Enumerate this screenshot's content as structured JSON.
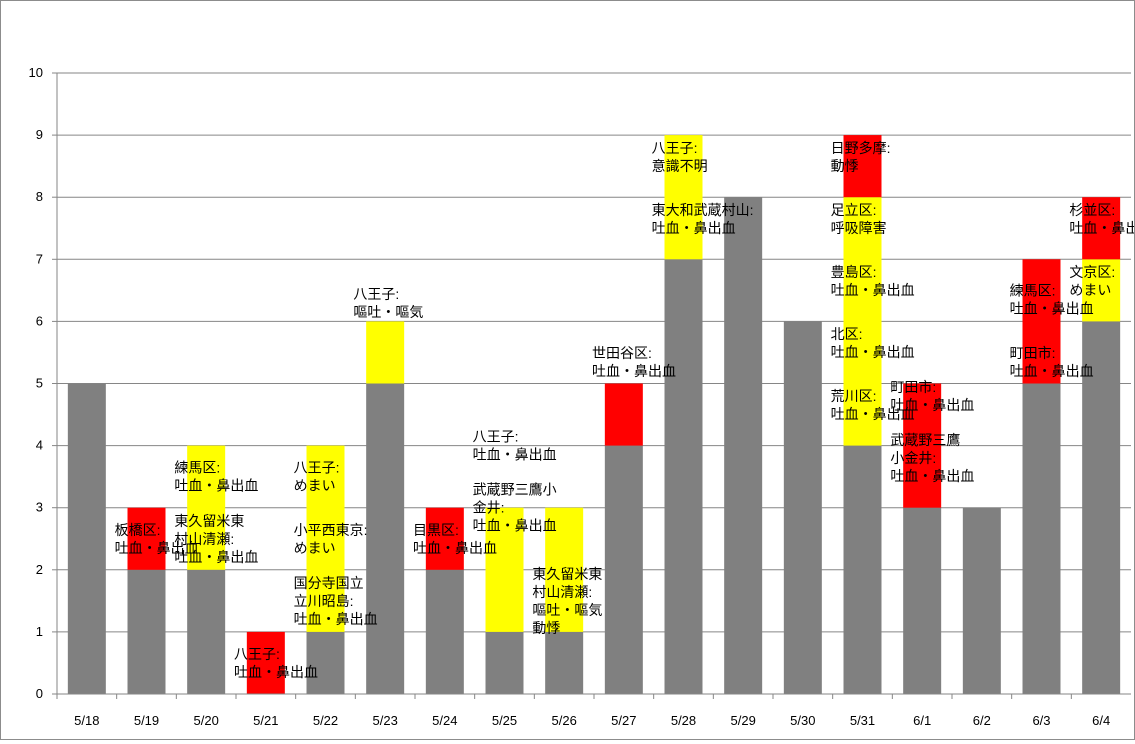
{
  "chart_data": {
    "type": "bar",
    "stacked": true,
    "categories": [
      "5/18",
      "5/19",
      "5/20",
      "5/21",
      "5/22",
      "5/23",
      "5/24",
      "5/25",
      "5/26",
      "5/27",
      "5/28",
      "5/29",
      "5/30",
      "5/31",
      "6/1",
      "6/2",
      "6/3",
      "6/4"
    ],
    "ylim": [
      0,
      10
    ],
    "yticks": [
      "0",
      "1",
      "2",
      "3",
      "4",
      "5",
      "6",
      "7",
      "8",
      "9",
      "10"
    ],
    "grid": true,
    "legend": "none",
    "colors": {
      "gray": "#808080",
      "yellow": "#ffff00",
      "red": "#ff0000",
      "gridline": "#868686"
    },
    "segments": [
      {
        "cat": 0,
        "color": "gray",
        "y0": 0,
        "y1": 5
      },
      {
        "cat": 1,
        "color": "gray",
        "y0": 0,
        "y1": 2
      },
      {
        "cat": 1,
        "color": "red",
        "y0": 2,
        "y1": 3
      },
      {
        "cat": 2,
        "color": "gray",
        "y0": 0,
        "y1": 2
      },
      {
        "cat": 2,
        "color": "yellow",
        "y0": 2,
        "y1": 4
      },
      {
        "cat": 3,
        "color": "red",
        "y0": 0,
        "y1": 1
      },
      {
        "cat": 4,
        "color": "gray",
        "y0": 0,
        "y1": 1
      },
      {
        "cat": 4,
        "color": "yellow",
        "y0": 1,
        "y1": 4
      },
      {
        "cat": 5,
        "color": "gray",
        "y0": 0,
        "y1": 5
      },
      {
        "cat": 5,
        "color": "yellow",
        "y0": 5,
        "y1": 6
      },
      {
        "cat": 6,
        "color": "gray",
        "y0": 0,
        "y1": 2
      },
      {
        "cat": 6,
        "color": "red",
        "y0": 2,
        "y1": 3
      },
      {
        "cat": 7,
        "color": "gray",
        "y0": 0,
        "y1": 1
      },
      {
        "cat": 7,
        "color": "yellow",
        "y0": 1,
        "y1": 3
      },
      {
        "cat": 8,
        "color": "gray",
        "y0": 0,
        "y1": 1
      },
      {
        "cat": 8,
        "color": "yellow",
        "y0": 1,
        "y1": 3
      },
      {
        "cat": 9,
        "color": "gray",
        "y0": 0,
        "y1": 4
      },
      {
        "cat": 9,
        "color": "red",
        "y0": 4,
        "y1": 5
      },
      {
        "cat": 10,
        "color": "gray",
        "y0": 0,
        "y1": 7
      },
      {
        "cat": 10,
        "color": "yellow",
        "y0": 7,
        "y1": 9
      },
      {
        "cat": 11,
        "color": "gray",
        "y0": 0,
        "y1": 8
      },
      {
        "cat": 12,
        "color": "gray",
        "y0": 0,
        "y1": 6
      },
      {
        "cat": 13,
        "color": "gray",
        "y0": 0,
        "y1": 4
      },
      {
        "cat": 13,
        "color": "yellow",
        "y0": 4,
        "y1": 8
      },
      {
        "cat": 13,
        "color": "red",
        "y0": 8,
        "y1": 9
      },
      {
        "cat": 14,
        "color": "gray",
        "y0": 0,
        "y1": 3
      },
      {
        "cat": 14,
        "color": "red",
        "y0": 3,
        "y1": 5
      },
      {
        "cat": 15,
        "color": "gray",
        "y0": 0,
        "y1": 3
      },
      {
        "cat": 16,
        "color": "gray",
        "y0": 0,
        "y1": 5
      },
      {
        "cat": 16,
        "color": "red",
        "y0": 5,
        "y1": 7
      },
      {
        "cat": 17,
        "color": "gray",
        "y0": 0,
        "y1": 6
      },
      {
        "cat": 17,
        "color": "yellow",
        "y0": 6,
        "y1": 7
      },
      {
        "cat": 17,
        "color": "red",
        "y0": 7,
        "y1": 8
      }
    ],
    "annotations": [
      {
        "cat": 1,
        "y": 2.5,
        "lines": [
          "板橋区:",
          "吐血・鼻出血"
        ]
      },
      {
        "cat": 2,
        "y": 3.5,
        "lines": [
          "練馬区:",
          "吐血・鼻出血"
        ]
      },
      {
        "cat": 2,
        "y": 2.5,
        "lines": [
          "東久留米東",
          "村山清瀬:",
          "吐血・鼻出血"
        ]
      },
      {
        "cat": 3,
        "y": 0.5,
        "lines": [
          "八王子:",
          "吐血・鼻出血"
        ]
      },
      {
        "cat": 4,
        "y": 3.5,
        "lines": [
          "八王子:",
          "めまい"
        ]
      },
      {
        "cat": 4,
        "y": 2.5,
        "lines": [
          "小平西東京:",
          "めまい"
        ]
      },
      {
        "cat": 4,
        "y": 1.5,
        "lines": [
          "国分寺国立",
          "立川昭島:",
          "吐血・鼻出血"
        ]
      },
      {
        "cat": 5,
        "y": 6.3,
        "lines": [
          "八王子:",
          "嘔吐・嘔気"
        ]
      },
      {
        "cat": 6,
        "y": 2.5,
        "lines": [
          "目黒区:",
          "吐血・鼻出血"
        ]
      },
      {
        "cat": 7,
        "y": 4.0,
        "lines": [
          "八王子:",
          "吐血・鼻出血"
        ]
      },
      {
        "cat": 7,
        "y": 3.0,
        "lines": [
          "武蔵野三鷹小",
          "金井:",
          "吐血・鼻出血"
        ]
      },
      {
        "cat": 8,
        "y": 1.5,
        "lines": [
          "東久留米東",
          "村山清瀬:",
          "嘔吐・嘔気",
          "動悸"
        ]
      },
      {
        "cat": 9,
        "y": 5.35,
        "lines": [
          "世田谷区:",
          "吐血・鼻出血"
        ]
      },
      {
        "cat": 10,
        "y": 8.65,
        "lines": [
          "八王子:",
          "意識不明"
        ]
      },
      {
        "cat": 10,
        "y": 7.65,
        "lines": [
          "東大和武蔵村山:",
          "吐血・鼻出血"
        ]
      },
      {
        "cat": 13,
        "y": 8.65,
        "lines": [
          "日野多摩:",
          "動悸"
        ]
      },
      {
        "cat": 13,
        "y": 7.65,
        "lines": [
          "足立区:",
          "呼吸障害"
        ]
      },
      {
        "cat": 13,
        "y": 6.65,
        "lines": [
          "豊島区:",
          "吐血・鼻出血"
        ]
      },
      {
        "cat": 13,
        "y": 5.65,
        "lines": [
          "北区:",
          "吐血・鼻出血"
        ]
      },
      {
        "cat": 13,
        "y": 4.65,
        "lines": [
          "荒川区:",
          "吐血・鼻出血"
        ]
      },
      {
        "cat": 14,
        "y": 4.8,
        "lines": [
          "町田市:",
          "吐血・鼻出血"
        ]
      },
      {
        "cat": 14,
        "y": 3.8,
        "lines": [
          "武蔵野三鷹",
          "小金井:",
          "吐血・鼻出血"
        ]
      },
      {
        "cat": 16,
        "y": 6.35,
        "lines": [
          "練馬区:",
          "吐血・鼻出血"
        ]
      },
      {
        "cat": 16,
        "y": 5.35,
        "lines": [
          "町田市:",
          "吐血・鼻出血"
        ]
      },
      {
        "cat": 17,
        "y": 7.65,
        "lines": [
          "杉並区:",
          "吐血・鼻出血"
        ]
      },
      {
        "cat": 17,
        "y": 6.65,
        "lines": [
          "文京区:",
          "めまい"
        ]
      }
    ]
  }
}
